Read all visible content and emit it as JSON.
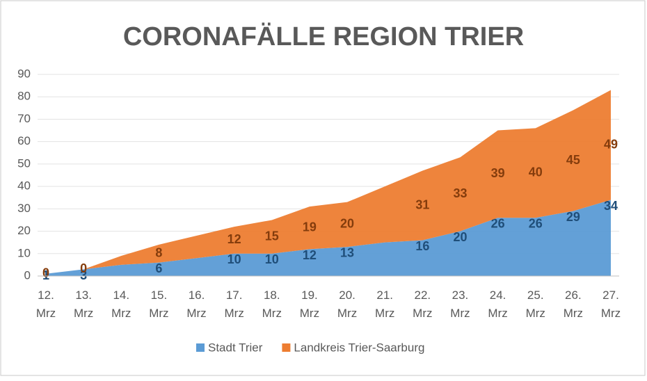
{
  "chart_data": {
    "type": "stacked_area",
    "title": "CORONAFÄLLE REGION TRIER",
    "categories": [
      "12. Mrz",
      "13. Mrz",
      "14. Mrz",
      "15. Mrz",
      "16. Mrz",
      "17. Mrz",
      "18. Mrz",
      "19. Mrz",
      "20. Mrz",
      "21. Mrz",
      "22. Mrz",
      "23. Mrz",
      "24. Mrz",
      "25. Mrz",
      "26. Mrz",
      "27. Mrz"
    ],
    "series": [
      {
        "name": "Stadt Trier",
        "color": "#5b9bd5",
        "label_color": "#1f4e79",
        "values": [
          1,
          3,
          5,
          6,
          8,
          10,
          10,
          12,
          13,
          15,
          16,
          20,
          26,
          26,
          29,
          34
        ],
        "value_labels": [
          "1",
          "3",
          null,
          "6",
          null,
          "10",
          "10",
          "12",
          "13",
          null,
          "16",
          "20",
          "26",
          "26",
          "29",
          "34"
        ]
      },
      {
        "name": "Landkreis Trier-Saarburg",
        "color": "#ed7d31",
        "label_color": "#843c0c",
        "values": [
          0,
          0,
          4,
          8,
          10,
          12,
          15,
          19,
          20,
          25,
          31,
          33,
          39,
          40,
          45,
          49
        ],
        "value_labels": [
          "0",
          "0",
          null,
          "8",
          null,
          "12",
          "15",
          "19",
          "20",
          null,
          "31",
          "33",
          "39",
          "40",
          "45",
          "49"
        ]
      }
    ],
    "ylim": [
      0,
      90
    ],
    "yticks": [
      0,
      10,
      20,
      30,
      40,
      50,
      60,
      70,
      80,
      90
    ],
    "grid": true,
    "legend": "bottom"
  }
}
